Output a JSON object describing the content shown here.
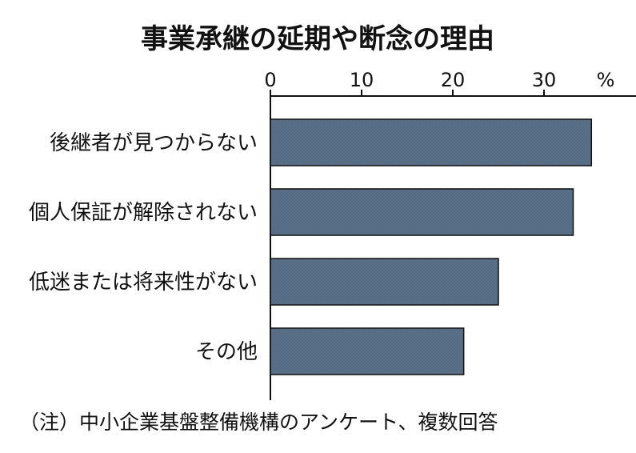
{
  "chart_data": {
    "type": "bar",
    "orientation": "horizontal",
    "title": "事業承継の延期や断念の理由",
    "unit": "%",
    "categories": [
      "後継者が見つからない",
      "個人保証が解除されない",
      "低迷または将来性がない",
      "その他"
    ],
    "values": [
      35.2,
      33.2,
      25.0,
      21.2
    ],
    "xlim": [
      0,
      40
    ],
    "xticks": [
      0,
      10,
      20,
      30
    ],
    "grid": false,
    "legend": "none",
    "note": "（注）中小企業基盤整備機構のアンケート、複数回答"
  },
  "colors": {
    "bar": "#5a7189",
    "axis": "#111111",
    "background": "#ffffff"
  }
}
